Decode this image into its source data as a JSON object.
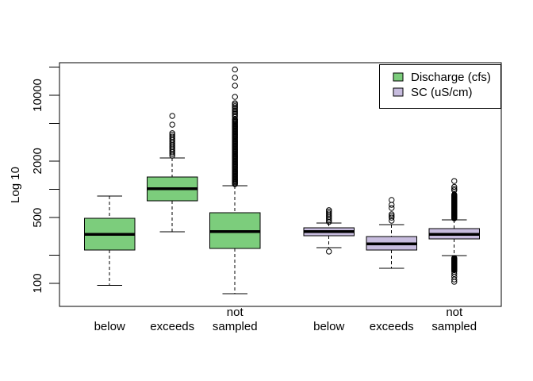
{
  "chart_data": {
    "type": "boxplot",
    "title": "",
    "ylabel": "Log 10",
    "yscale": "log10",
    "ylim_log10": [
      1.755,
      4.346
    ],
    "xlim": [
      0.2,
      7.25
    ],
    "box_width": 0.8,
    "grid": false,
    "background": "#ffffff",
    "yticks": [
      {
        "value": 100,
        "label": "100"
      },
      {
        "value": 200,
        "label": ""
      },
      {
        "value": 500,
        "label": "500"
      },
      {
        "value": 1000,
        "label": ""
      },
      {
        "value": 2000,
        "label": "2000"
      },
      {
        "value": 5000,
        "label": ""
      },
      {
        "value": 10000,
        "label": "10000"
      },
      {
        "value": 20000,
        "label": ""
      }
    ],
    "legend": {
      "position": "top-right",
      "items": [
        {
          "label": "Discharge (cfs)",
          "color": "#7CCD7C"
        },
        {
          "label": "SC (uS/cm)",
          "color": "#C7BCDE"
        }
      ]
    },
    "groups": [
      {
        "series": "Discharge (cfs)",
        "category": "below",
        "label_lines": [
          "below"
        ],
        "at": 1,
        "stats": {
          "whislo": 95,
          "q1": 226,
          "med": 333,
          "q3": 492,
          "whishi": 850
        },
        "outliers": [],
        "outlier_runs": []
      },
      {
        "series": "Discharge (cfs)",
        "category": "exceeds",
        "label_lines": [
          "exceeds"
        ],
        "at": 2,
        "stats": {
          "whislo": 355,
          "q1": 755,
          "med": 1010,
          "q3": 1350,
          "whishi": 2150
        },
        "outliers": [
          4870,
          6030
        ],
        "outlier_runs": [
          {
            "from": 2280,
            "to": 3950,
            "count": 14
          }
        ]
      },
      {
        "series": "Discharge (cfs)",
        "category": "not sampled",
        "label_lines": [
          "not",
          "sampled"
        ],
        "at": 3,
        "stats": {
          "whislo": 78,
          "q1": 235,
          "med": 354,
          "q3": 563,
          "whishi": 1090
        },
        "outliers": [
          9610,
          12630,
          15370,
          18780
        ],
        "outlier_runs": [
          {
            "from": 1135,
            "to": 5580,
            "count": 70
          },
          {
            "from": 5910,
            "to": 8230,
            "count": 10
          }
        ]
      },
      {
        "series": "SC (uS/cm)",
        "category": "below",
        "label_lines": [
          "below"
        ],
        "at": 4.5,
        "stats": {
          "whislo": 240,
          "q1": 321,
          "med": 354,
          "q3": 390,
          "whishi": 438
        },
        "outliers": [
          218
        ],
        "outlier_runs": [
          {
            "from": 450,
            "to": 600,
            "count": 8
          }
        ]
      },
      {
        "series": "SC (uS/cm)",
        "category": "exceeds",
        "label_lines": [
          "exceeds"
        ],
        "at": 5.5,
        "stats": {
          "whislo": 145,
          "q1": 226,
          "med": 264,
          "q3": 315,
          "whishi": 421
        },
        "outliers": [
          464,
          500,
          520,
          542,
          633,
          684,
          770
        ],
        "outlier_runs": []
      },
      {
        "series": "SC (uS/cm)",
        "category": "not sampled",
        "label_lines": [
          "not",
          "sampled"
        ],
        "at": 6.5,
        "stats": {
          "whislo": 197,
          "q1": 297,
          "med": 333,
          "q3": 382,
          "whishi": 473
        },
        "outliers": [
          975,
          1010,
          1060,
          1225,
          104,
          110,
          118,
          126,
          133
        ],
        "outlier_runs": [
          {
            "from": 490,
            "to": 880,
            "count": 40
          },
          {
            "from": 138,
            "to": 186,
            "count": 25
          }
        ]
      }
    ]
  }
}
